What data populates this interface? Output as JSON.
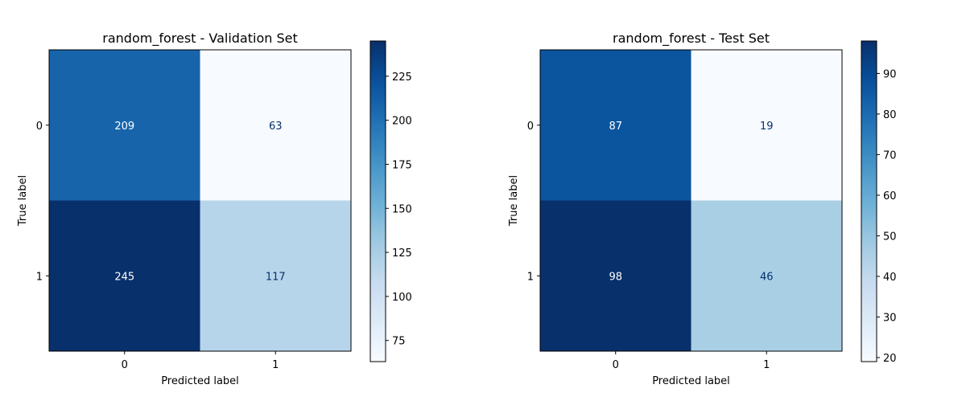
{
  "chart_data": [
    {
      "type": "heatmap",
      "subtype": "confusion_matrix",
      "title": "random_forest - Validation Set",
      "xlabel": "Predicted label",
      "ylabel": "True label",
      "x_categories": [
        "0",
        "1"
      ],
      "y_categories": [
        "0",
        "1"
      ],
      "matrix": [
        [
          209,
          63
        ],
        [
          245,
          117
        ]
      ],
      "colormap": "Blues",
      "colorbar": {
        "vmin": 63,
        "vmax": 245,
        "ticks": [
          75,
          100,
          125,
          150,
          175,
          200,
          225
        ]
      }
    },
    {
      "type": "heatmap",
      "subtype": "confusion_matrix",
      "title": "random_forest - Test Set",
      "xlabel": "Predicted label",
      "ylabel": "True label",
      "x_categories": [
        "0",
        "1"
      ],
      "y_categories": [
        "0",
        "1"
      ],
      "matrix": [
        [
          87,
          19
        ],
        [
          98,
          46
        ]
      ],
      "colormap": "Blues",
      "colorbar": {
        "vmin": 19,
        "vmax": 98,
        "ticks": [
          20,
          30,
          40,
          50,
          60,
          70,
          80,
          90
        ]
      }
    }
  ]
}
